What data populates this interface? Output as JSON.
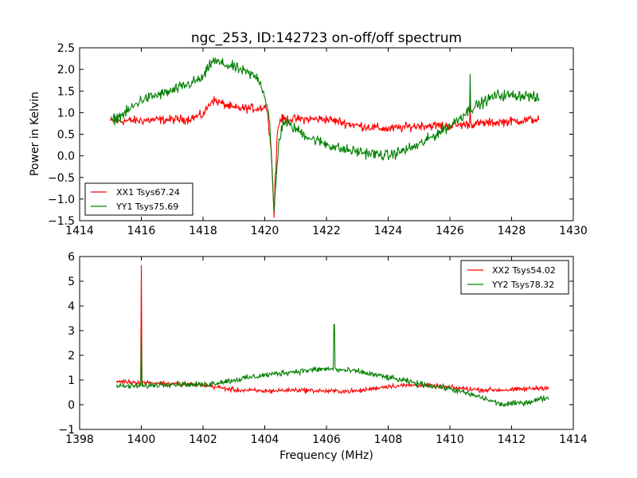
{
  "chart_data": [
    {
      "type": "line",
      "title": "ngc_253, ID:142723 on-off/off spectrum",
      "xlabel": "",
      "ylabel": "Power in Kelvin",
      "xlim": [
        1414,
        1430
      ],
      "ylim": [
        -1.5,
        2.5
      ],
      "xticks": [
        1414,
        1416,
        1418,
        1420,
        1422,
        1424,
        1426,
        1428,
        1430
      ],
      "yticks": [
        -1.5,
        -1.0,
        -0.5,
        0.0,
        0.5,
        1.0,
        1.5,
        2.0,
        2.5
      ],
      "ytick_labels": [
        "−1.5",
        "−1.0",
        "−0.5",
        "0.0",
        "0.5",
        "1.0",
        "1.5",
        "2.0",
        "2.5"
      ],
      "grid": false,
      "legend_position": "lower-left",
      "x_range_data": [
        1415.0,
        1428.9
      ],
      "series": [
        {
          "name": "XX1 Tsys67.24",
          "color": "#ff0000",
          "noise": 0.09,
          "anchors": [
            [
              1415.0,
              0.8
            ],
            [
              1416,
              0.82
            ],
            [
              1417.5,
              0.85
            ],
            [
              1418.0,
              0.95
            ],
            [
              1418.3,
              1.3
            ],
            [
              1419,
              1.1
            ],
            [
              1419.8,
              1.1
            ],
            [
              1420.05,
              1.15
            ],
            [
              1420.2,
              0.3
            ],
            [
              1420.3,
              -1.35
            ],
            [
              1420.4,
              0.5
            ],
            [
              1420.5,
              0.85
            ],
            [
              1422,
              0.85
            ],
            [
              1423,
              0.7
            ],
            [
              1424,
              0.62
            ],
            [
              1425,
              0.7
            ],
            [
              1426,
              0.7
            ],
            [
              1427,
              0.75
            ],
            [
              1428,
              0.8
            ],
            [
              1428.9,
              0.85
            ]
          ],
          "spikes": [
            [
              1420.35,
              -0.4
            ],
            [
              1426.65,
              1.2
            ]
          ]
        },
        {
          "name": "YY1 Tsys75.69",
          "color": "#008000",
          "noise": 0.11,
          "anchors": [
            [
              1415.0,
              0.8
            ],
            [
              1415.5,
              1.0
            ],
            [
              1416,
              1.3
            ],
            [
              1417,
              1.5
            ],
            [
              1418,
              1.8
            ],
            [
              1418.3,
              2.2
            ],
            [
              1419,
              2.05
            ],
            [
              1419.8,
              1.8
            ],
            [
              1420.0,
              1.4
            ],
            [
              1420.15,
              0.9
            ],
            [
              1420.3,
              -1.3
            ],
            [
              1420.45,
              0.3
            ],
            [
              1420.6,
              0.8
            ],
            [
              1421.5,
              0.4
            ],
            [
              1422.5,
              0.15
            ],
            [
              1424,
              0.0
            ],
            [
              1425,
              0.25
            ],
            [
              1426,
              0.7
            ],
            [
              1426.7,
              1.1
            ],
            [
              1427.5,
              1.4
            ],
            [
              1428.5,
              1.4
            ],
            [
              1428.9,
              1.3
            ]
          ],
          "spikes": [
            [
              1426.65,
              1.9
            ]
          ]
        }
      ]
    },
    {
      "type": "line",
      "title": "",
      "xlabel": "Frequency (MHz)",
      "ylabel": "",
      "xlim": [
        1398,
        1414
      ],
      "ylim": [
        -1,
        6
      ],
      "xticks": [
        1398,
        1400,
        1402,
        1404,
        1406,
        1408,
        1410,
        1412,
        1414
      ],
      "yticks": [
        -1,
        0,
        1,
        2,
        3,
        4,
        5,
        6
      ],
      "ytick_labels": [
        "−1",
        "0",
        "1",
        "2",
        "3",
        "4",
        "5",
        "6"
      ],
      "grid": false,
      "legend_position": "upper-right",
      "x_range_data": [
        1399.2,
        1413.2
      ],
      "series": [
        {
          "name": "XX2 Tsys54.02",
          "color": "#ff0000",
          "noise": 0.08,
          "anchors": [
            [
              1399.2,
              0.95
            ],
            [
              1401,
              0.85
            ],
            [
              1402,
              0.8
            ],
            [
              1403,
              0.6
            ],
            [
              1404,
              0.55
            ],
            [
              1405,
              0.6
            ],
            [
              1406,
              0.55
            ],
            [
              1407,
              0.55
            ],
            [
              1408,
              0.75
            ],
            [
              1409,
              0.8
            ],
            [
              1410,
              0.7
            ],
            [
              1411,
              0.6
            ],
            [
              1412,
              0.6
            ],
            [
              1413.2,
              0.7
            ]
          ],
          "spikes": [
            [
              1400.0,
              5.65
            ]
          ]
        },
        {
          "name": "YY2 Tsys78.32",
          "color": "#008000",
          "noise": 0.1,
          "anchors": [
            [
              1399.2,
              0.75
            ],
            [
              1400,
              0.75
            ],
            [
              1401,
              0.85
            ],
            [
              1402,
              0.8
            ],
            [
              1403,
              1.0
            ],
            [
              1404,
              1.2
            ],
            [
              1405,
              1.35
            ],
            [
              1406,
              1.45
            ],
            [
              1407,
              1.35
            ],
            [
              1408,
              1.1
            ],
            [
              1409,
              0.85
            ],
            [
              1410,
              0.65
            ],
            [
              1411,
              0.3
            ],
            [
              1411.7,
              0.0
            ],
            [
              1412.5,
              0.1
            ],
            [
              1413.2,
              0.3
            ]
          ],
          "spikes": [
            [
              1400.0,
              2.85
            ],
            [
              1406.25,
              3.25
            ]
          ]
        }
      ]
    }
  ]
}
